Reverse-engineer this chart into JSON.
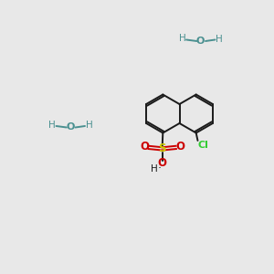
{
  "background_color": "#e8e8e8",
  "bond_color": "#1a1a1a",
  "oxygen_color": "#cc0000",
  "sulfur_color": "#cccc00",
  "chlorine_color": "#33cc33",
  "water_color": "#4a9090",
  "figsize": [
    3.0,
    3.0
  ],
  "dpi": 100,
  "xlim": [
    0,
    10
  ],
  "ylim": [
    0,
    10
  ]
}
